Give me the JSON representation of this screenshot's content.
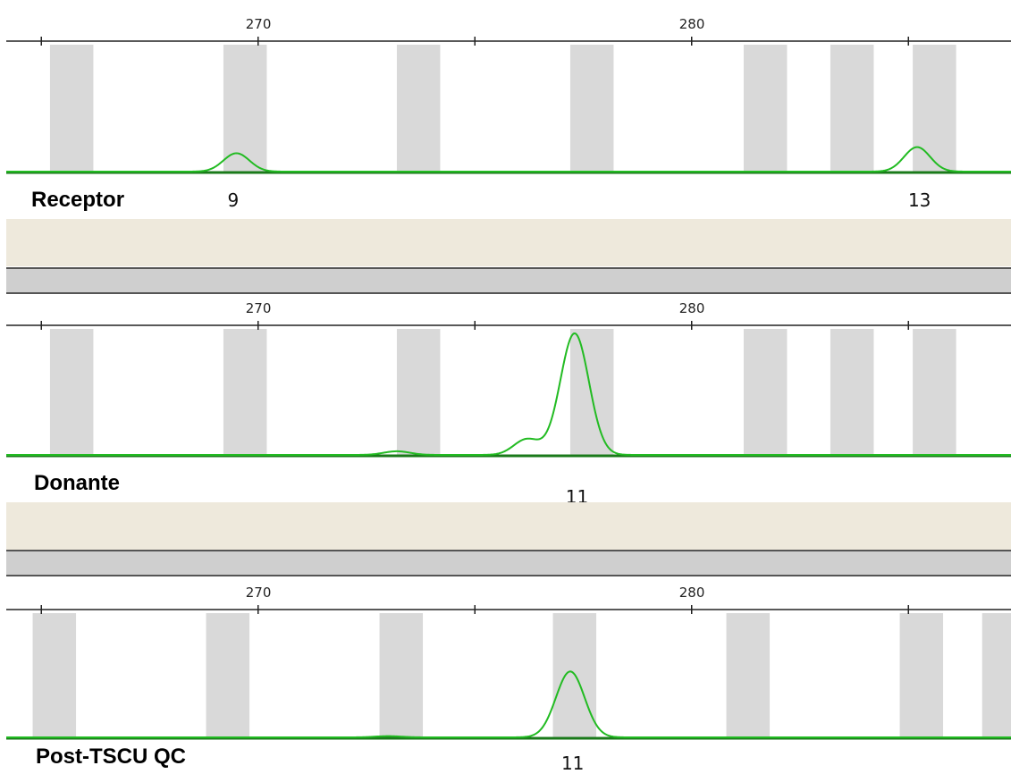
{
  "chart_data": [
    {
      "type": "line",
      "title": "",
      "xlabel": "",
      "ylabel": "",
      "xlim": [
        264.5,
        288.0
      ],
      "ylim": [
        0,
        100
      ],
      "x_ticks": [
        265,
        270,
        275,
        280,
        285
      ],
      "x_tick_labels": [
        "270",
        "280"
      ],
      "bins": [
        [
          265.2,
          266.2
        ],
        [
          269.2,
          270.2
        ],
        [
          273.2,
          274.2
        ],
        [
          277.2,
          278.2
        ],
        [
          281.2,
          282.2
        ],
        [
          283.2,
          284.2
        ],
        [
          285.1,
          286.1
        ]
      ],
      "sample": "Receptor",
      "peaks": [
        {
          "allele": "9",
          "x": 269.5,
          "height": 15
        },
        {
          "allele": "13",
          "x": 285.2,
          "height": 20
        }
      ],
      "color": "#22bb22"
    },
    {
      "type": "line",
      "title": "",
      "xlabel": "",
      "ylabel": "",
      "xlim": [
        264.5,
        288.0
      ],
      "ylim": [
        0,
        100
      ],
      "x_ticks": [
        265,
        270,
        275,
        280,
        285
      ],
      "x_tick_labels": [
        "270",
        "280"
      ],
      "bins": [
        [
          265.2,
          266.2
        ],
        [
          269.2,
          270.2
        ],
        [
          273.2,
          274.2
        ],
        [
          277.2,
          278.2
        ],
        [
          281.2,
          282.2
        ],
        [
          283.2,
          284.2
        ],
        [
          285.1,
          286.1
        ]
      ],
      "sample": "Donante",
      "peaks": [
        {
          "allele": "",
          "x": 273.2,
          "height": 3
        },
        {
          "allele": "",
          "x": 276.2,
          "height": 13
        },
        {
          "allele": "11",
          "x": 277.3,
          "height": 100
        }
      ],
      "color": "#22bb22"
    },
    {
      "type": "line",
      "title": "",
      "xlabel": "",
      "ylabel": "",
      "xlim": [
        264.5,
        288.0
      ],
      "ylim": [
        0,
        100
      ],
      "x_ticks": [
        265,
        270,
        275,
        280,
        285
      ],
      "x_tick_labels": [
        "270",
        "280"
      ],
      "bins": [
        [
          264.8,
          265.8
        ],
        [
          268.8,
          269.8
        ],
        [
          272.8,
          273.8
        ],
        [
          276.8,
          277.8
        ],
        [
          280.8,
          281.8
        ],
        [
          284.8,
          285.8
        ],
        [
          286.7,
          287.7
        ]
      ],
      "sample": "Post-TSCU QC",
      "peaks": [
        {
          "allele": "",
          "x": 273.0,
          "height": 1
        },
        {
          "allele": "11",
          "x": 277.2,
          "height": 55
        }
      ],
      "color": "#22bb22"
    }
  ]
}
